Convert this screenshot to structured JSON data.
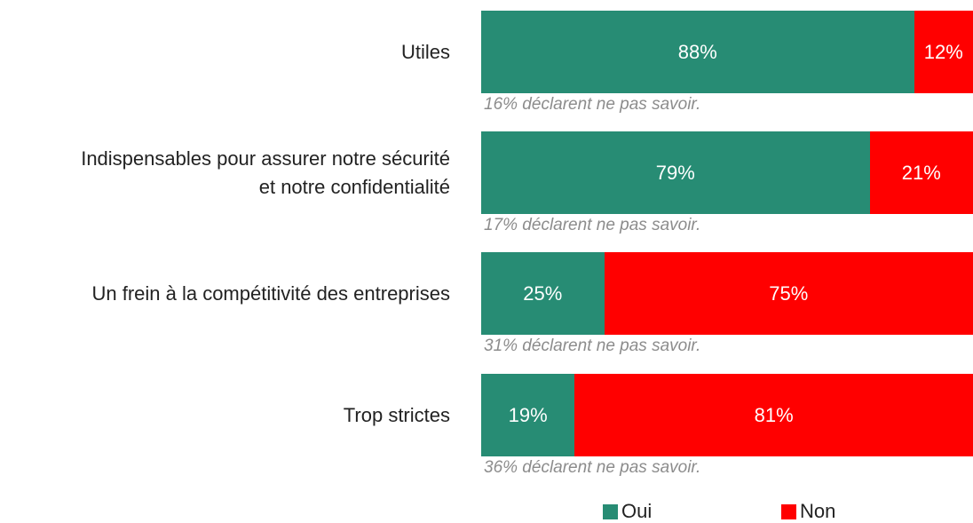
{
  "chart_data": {
    "type": "stacked-barh",
    "categories": [
      "Utiles",
      "Indispensables pour assurer notre sécurité\net notre confidentialité",
      "Un frein à la compétitivité des entreprises",
      "Trop strictes"
    ],
    "series": [
      {
        "name": "Oui",
        "color": "#278c74",
        "values": [
          88,
          79,
          25,
          19
        ],
        "value_labels": [
          "88%",
          "79%",
          "25%",
          "19%"
        ]
      },
      {
        "name": "Non",
        "color": "#ff0000",
        "values": [
          12,
          21,
          75,
          81
        ],
        "value_labels": [
          "12%",
          "21%",
          "75%",
          "81%"
        ]
      }
    ],
    "annotations": [
      "16% déclarent ne pas savoir.",
      "17% déclarent ne pas savoir.",
      "31% déclarent ne pas savoir.",
      "36% déclarent ne pas savoir."
    ],
    "xlim": [
      0,
      100
    ],
    "legend": "bottom"
  }
}
